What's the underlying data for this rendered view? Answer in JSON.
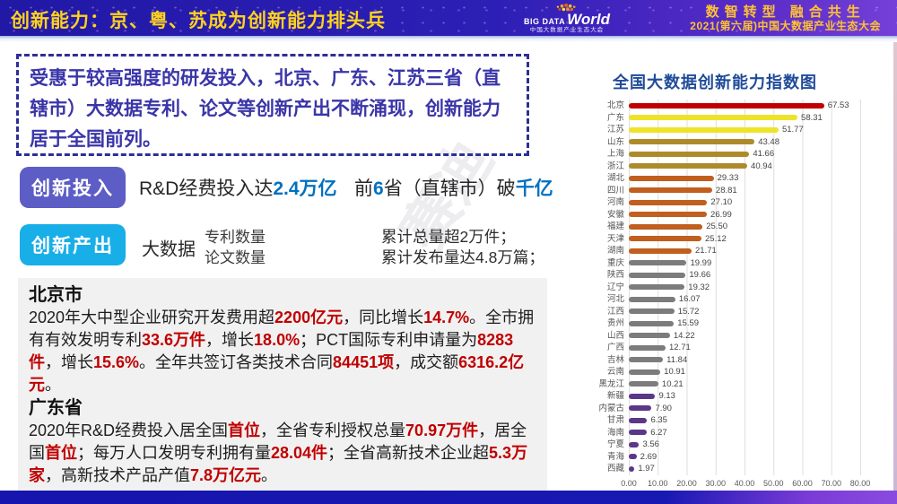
{
  "header": {
    "title": "创新能力：京、粤、苏成为创新能力排头兵",
    "logo": {
      "big": "BIG DATA",
      "world": "World",
      "caption": "中国大数据产业生态大会"
    },
    "slogan1": "数智转型 融合共生",
    "slogan2": "2021(第六届)中国大数据产业生态大会"
  },
  "watermark": {
    "w1": "赛迪",
    "w2": "ccid"
  },
  "summary_box": {
    "text": "受惠于较高强度的研发投入，北京、广东、江苏三省（直辖市）大数据专利、论文等创新产出不断涌现，创新能力居于全国前列。"
  },
  "colors": {
    "badge_input": "#5D5DC6",
    "badge_output": "#18AEE8",
    "highlight_blue": "#0070C0",
    "highlight_red": "#C00000"
  },
  "innovation_input": {
    "badge": "创新投入",
    "part1": [
      {
        "t": "R&D经费投入达"
      },
      {
        "t": "2.4万亿",
        "c": "blue"
      }
    ],
    "part2": [
      {
        "t": "前"
      },
      {
        "t": "6",
        "c": "blue"
      },
      {
        "t": "省（直辖市）破"
      },
      {
        "t": "千亿",
        "c": "blue"
      }
    ]
  },
  "innovation_output": {
    "badge": "创新产出",
    "prefix": "大数据",
    "metrics": [
      "专利数量",
      "论文数量"
    ],
    "results": [
      "累计总量超2万件；",
      "累计发布量达4.8万篇；"
    ]
  },
  "beijing": {
    "heading": "北京市",
    "segments": [
      {
        "t": "2020年大中型企业研究开发费用超"
      },
      {
        "t": "2200亿元",
        "c": "red"
      },
      {
        "t": "，同比增长"
      },
      {
        "t": "14.7%",
        "c": "red"
      },
      {
        "t": "。全市拥有有效发明专利"
      },
      {
        "t": "33.6万件",
        "c": "red"
      },
      {
        "t": "，增长"
      },
      {
        "t": "18.0%",
        "c": "red"
      },
      {
        "t": "；PCT国际专利申请量为"
      },
      {
        "t": "8283件",
        "c": "red"
      },
      {
        "t": "，增长"
      },
      {
        "t": "15.6%",
        "c": "red"
      },
      {
        "t": "。全年共签订各类技术合同"
      },
      {
        "t": "84451项",
        "c": "red"
      },
      {
        "t": "，成交额"
      },
      {
        "t": "6316.2亿元",
        "c": "red"
      },
      {
        "t": "。"
      }
    ]
  },
  "guangdong": {
    "heading": "广东省",
    "segments": [
      {
        "t": "2020年R&D经费投入居全国"
      },
      {
        "t": "首位",
        "c": "red"
      },
      {
        "t": "，全省专利授权总量"
      },
      {
        "t": "70.97万件",
        "c": "red"
      },
      {
        "t": "，居全国"
      },
      {
        "t": "首位",
        "c": "red"
      },
      {
        "t": "；每万人口发明专利拥有量"
      },
      {
        "t": "28.04件",
        "c": "red"
      },
      {
        "t": "；全省高新技术企业超"
      },
      {
        "t": "5.3万家",
        "c": "red"
      },
      {
        "t": "，高新技术产品产值"
      },
      {
        "t": "7.8万亿元",
        "c": "red"
      },
      {
        "t": "。"
      }
    ]
  },
  "chart_data": {
    "type": "bar",
    "orientation": "horizontal",
    "title": "全国大数据创新能力指数图",
    "xlabel": "",
    "ylabel": "",
    "xlim": [
      0,
      80
    ],
    "grid": true,
    "x_ticks": [
      "0.00",
      "10.00",
      "20.00",
      "30.00",
      "40.00",
      "50.00",
      "60.00",
      "70.00",
      "80.00"
    ],
    "items": [
      {
        "label": "北京",
        "value": 67.53,
        "display": "67.53",
        "color": "#C00000"
      },
      {
        "label": "广东",
        "value": 58.31,
        "display": "58.31",
        "color": "#EFE32A"
      },
      {
        "label": "江苏",
        "value": 51.77,
        "display": "51.77",
        "color": "#EFE32A"
      },
      {
        "label": "山东",
        "value": 43.48,
        "display": "43.48",
        "color": "#AD8B2B"
      },
      {
        "label": "上海",
        "value": 41.66,
        "display": "41.66",
        "color": "#AD8B2B"
      },
      {
        "label": "浙江",
        "value": 40.94,
        "display": "40.94",
        "color": "#AD8B2B"
      },
      {
        "label": "湖北",
        "value": 29.33,
        "display": "29.33",
        "color": "#C05F1E"
      },
      {
        "label": "四川",
        "value": 28.81,
        "display": "28.81",
        "color": "#C05F1E"
      },
      {
        "label": "河南",
        "value": 27.1,
        "display": "27.10",
        "color": "#C05F1E"
      },
      {
        "label": "安徽",
        "value": 26.99,
        "display": "26.99",
        "color": "#C05F1E"
      },
      {
        "label": "福建",
        "value": 25.5,
        "display": "25.50",
        "color": "#C05F1E"
      },
      {
        "label": "天津",
        "value": 25.12,
        "display": "25.12",
        "color": "#C05F1E"
      },
      {
        "label": "湖南",
        "value": 21.71,
        "display": "21.71",
        "color": "#C05F1E"
      },
      {
        "label": "重庆",
        "value": 19.99,
        "display": "19.99",
        "color": "#7C7C7C"
      },
      {
        "label": "陕西",
        "value": 19.66,
        "display": "19.66",
        "color": "#7C7C7C"
      },
      {
        "label": "辽宁",
        "value": 19.32,
        "display": "19.32",
        "color": "#7C7C7C"
      },
      {
        "label": "河北",
        "value": 16.07,
        "display": "16.07",
        "color": "#7C7C7C"
      },
      {
        "label": "江西",
        "value": 15.72,
        "display": "15.72",
        "color": "#7C7C7C"
      },
      {
        "label": "贵州",
        "value": 15.59,
        "display": "15.59",
        "color": "#7C7C7C"
      },
      {
        "label": "山西",
        "value": 14.22,
        "display": "14.22",
        "color": "#7C7C7C"
      },
      {
        "label": "广西",
        "value": 12.71,
        "display": "12.71",
        "color": "#7C7C7C"
      },
      {
        "label": "吉林",
        "value": 11.84,
        "display": "11.84",
        "color": "#7C7C7C"
      },
      {
        "label": "云南",
        "value": 10.91,
        "display": "10.91",
        "color": "#7C7C7C"
      },
      {
        "label": "黑龙江",
        "value": 10.21,
        "display": "10.21",
        "color": "#7C7C7C"
      },
      {
        "label": "新疆",
        "value": 9.13,
        "display": "9.13",
        "color": "#5B3788"
      },
      {
        "label": "内蒙古",
        "value": 7.9,
        "display": "7.90",
        "color": "#5B3788"
      },
      {
        "label": "甘肃",
        "value": 6.35,
        "display": "6.35",
        "color": "#5B3788"
      },
      {
        "label": "海南",
        "value": 6.27,
        "display": "6.27",
        "color": "#5B3788"
      },
      {
        "label": "宁夏",
        "value": 3.56,
        "display": "3.56",
        "color": "#5B3788"
      },
      {
        "label": "青海",
        "value": 2.69,
        "display": "2.69",
        "color": "#5B3788"
      },
      {
        "label": "西藏",
        "value": 1.97,
        "display": "1.97",
        "color": "#5B3788"
      }
    ]
  }
}
